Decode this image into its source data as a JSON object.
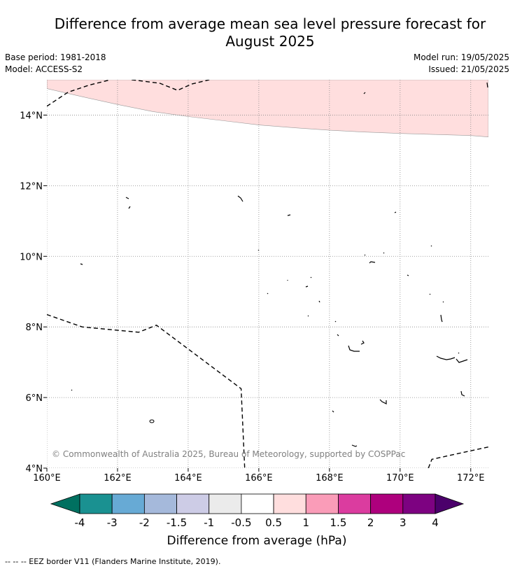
{
  "title": {
    "line1": "Difference from average mean sea level pressure forecast for",
    "line2": "August 2025"
  },
  "meta": {
    "base_period": "Base period: 1981-2018",
    "model": "Model: ACCESS-S2",
    "model_run": "Model run: 19/05/2025",
    "issued": "Issued: 21/05/2025"
  },
  "map": {
    "lon_range": [
      160,
      172.5
    ],
    "lat_range": [
      4,
      15
    ],
    "lon_ticks": [
      {
        "value": 160,
        "label": "160°E"
      },
      {
        "value": 162,
        "label": "162°E"
      },
      {
        "value": 164,
        "label": "164°E"
      },
      {
        "value": 166,
        "label": "166°E"
      },
      {
        "value": 168,
        "label": "168°E"
      },
      {
        "value": 170,
        "label": "170°E"
      },
      {
        "value": 172,
        "label": "172°E"
      }
    ],
    "lat_ticks": [
      {
        "value": 4,
        "label": "4°N"
      },
      {
        "value": 6,
        "label": "6°N"
      },
      {
        "value": 8,
        "label": "8°N"
      },
      {
        "value": 10,
        "label": "10°N"
      },
      {
        "value": 12,
        "label": "12°N"
      },
      {
        "value": 14,
        "label": "14°N"
      }
    ],
    "grid": "dotted",
    "shaded_region_color": "#ffdede",
    "shaded_region_boundary": [
      [
        160,
        14.75
      ],
      [
        161,
        14.52
      ],
      [
        162,
        14.3
      ],
      [
        163,
        14.1
      ],
      [
        164,
        13.96
      ],
      [
        165,
        13.84
      ],
      [
        166,
        13.72
      ],
      [
        167,
        13.64
      ],
      [
        168,
        13.57
      ],
      [
        169,
        13.52
      ],
      [
        170,
        13.48
      ],
      [
        171,
        13.45
      ],
      [
        172,
        13.42
      ],
      [
        172.5,
        13.38
      ]
    ],
    "eez_lines": [
      [
        [
          160,
          14.25
        ],
        [
          160.6,
          14.65
        ],
        [
          161.2,
          14.85
        ],
        [
          161.8,
          15.0
        ]
      ],
      [
        [
          162.4,
          15.0
        ],
        [
          163.2,
          14.9
        ],
        [
          163.7,
          14.7
        ],
        [
          164.1,
          14.88
        ],
        [
          164.6,
          15.0
        ]
      ],
      [
        [
          160,
          8.35
        ],
        [
          161,
          8.0
        ],
        [
          162.6,
          7.85
        ],
        [
          163.1,
          8.05
        ],
        [
          165.5,
          6.25
        ],
        [
          165.6,
          4.0
        ]
      ],
      [
        [
          170.8,
          4.0
        ],
        [
          170.9,
          4.25
        ],
        [
          172.5,
          4.6
        ]
      ]
    ],
    "copyright": "© Commonwealth of Australia 2025, Bureau of Meteorology, supported by COSPPac"
  },
  "legend": {
    "title": "Difference from average (hPa)",
    "labels": [
      "-4",
      "-3",
      "-2",
      "-1.5",
      "-1",
      "-0.5",
      "0.5",
      "1",
      "1.5",
      "2",
      "3",
      "4"
    ],
    "colors": [
      "#007060",
      "#1a9191",
      "#67aad5",
      "#a5b9db",
      "#cdcce6",
      "#ebebeb",
      "#ffffff",
      "#ffdede",
      "#fa9cb8",
      "#db3c9f",
      "#ae007d",
      "#7d0281",
      "#4b006b"
    ]
  },
  "footer": "--  --  -- EEZ border V11 (Flanders Marine Institute, 2019)."
}
